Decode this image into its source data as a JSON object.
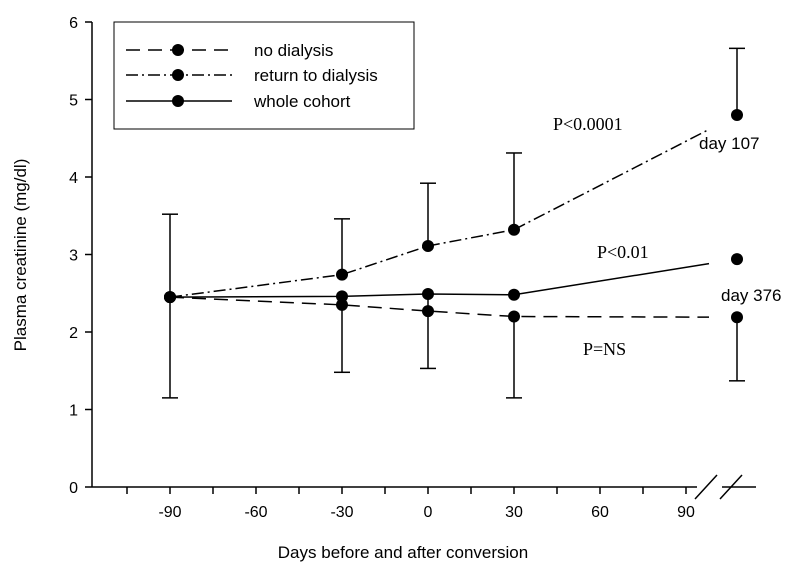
{
  "chart_data": {
    "type": "line",
    "xlabel": "Days before and after conversion",
    "ylabel": "Plasma creatinine (mg/dl)",
    "ylim": [
      0,
      6
    ],
    "yticks": [
      "0",
      "1",
      "2",
      "3",
      "4",
      "5",
      "6"
    ],
    "xticks": [
      "-90",
      "-60",
      "-30",
      "0",
      "30",
      "60",
      "90"
    ],
    "x": [
      -90,
      -30,
      0,
      30,
      "late"
    ],
    "axis_break": true,
    "legend_position": "top-left",
    "grid": false,
    "series": [
      {
        "name": "no dialysis",
        "style": "dashed",
        "values": [
          2.45,
          2.35,
          2.27,
          2.2,
          2.19
        ],
        "error_low": [
          null,
          null,
          null,
          1.15,
          1.37
        ],
        "error_high": [
          null,
          null,
          null,
          null,
          null
        ]
      },
      {
        "name": "return to dialysis",
        "style": "dashdot",
        "values": [
          2.45,
          2.74,
          3.11,
          3.32,
          4.8
        ],
        "error_low": [
          null,
          null,
          null,
          null,
          null
        ],
        "error_high": [
          3.52,
          3.46,
          3.92,
          4.31,
          5.66
        ]
      },
      {
        "name": "whole cohort",
        "style": "solid",
        "values": [
          2.45,
          2.46,
          2.49,
          2.48,
          2.94
        ],
        "error_low": [
          1.15,
          1.48,
          1.53,
          null,
          null
        ],
        "error_high": [
          null,
          null,
          null,
          null,
          null
        ]
      }
    ],
    "annotations": {
      "p_dialysis": "P<0.0001",
      "p_cohort": "P<0.01",
      "p_nodialysis": "P=NS",
      "day_dialysis": "day 107",
      "day_cohort": "day 376"
    }
  }
}
